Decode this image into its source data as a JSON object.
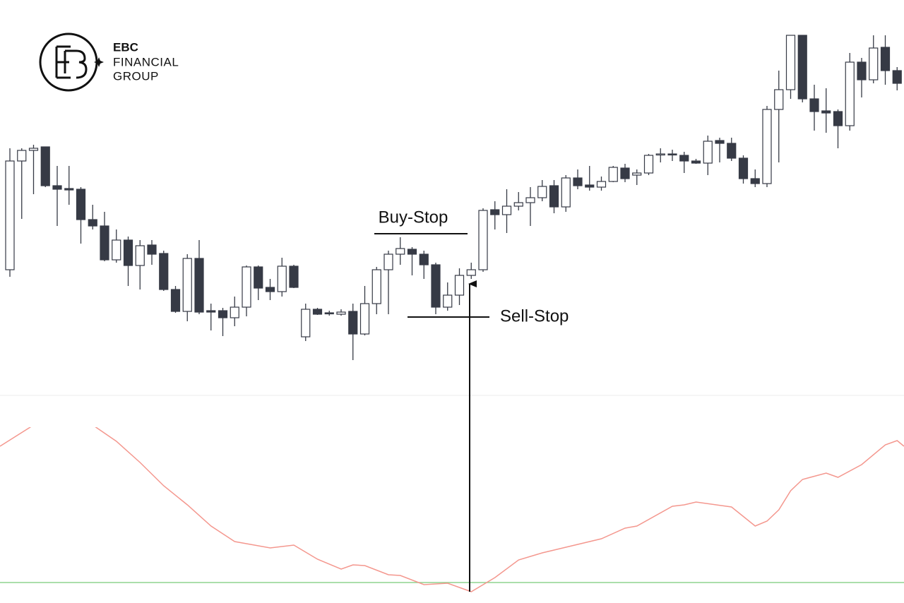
{
  "logo": {
    "line1": "EBC",
    "line2": "FINANCIAL",
    "line3": "GROUP"
  },
  "chart_data": [
    {
      "type": "candlestick",
      "categories": [
        null,
        null,
        null,
        null,
        null,
        null,
        null,
        null,
        null,
        null,
        null,
        null,
        null,
        null,
        null,
        null,
        null,
        null,
        null,
        null,
        null,
        null,
        null,
        null,
        null,
        null,
        null,
        null,
        null,
        null,
        null,
        null,
        null,
        null,
        null,
        null,
        null,
        null,
        null,
        null,
        null,
        null,
        null,
        null,
        null,
        null,
        null,
        null,
        null,
        null,
        null,
        null,
        null,
        null,
        null,
        null,
        null,
        null,
        null,
        null,
        null,
        null,
        null,
        null,
        null,
        null,
        null,
        null,
        null,
        null,
        null,
        null,
        null,
        null,
        null,
        null
      ],
      "open": [
        472,
        626,
        641,
        646,
        591,
        587,
        586,
        543,
        534,
        486,
        514,
        478,
        507,
        495,
        444,
        413,
        488,
        414,
        414,
        404,
        419,
        476,
        447,
        441,
        477,
        377,
        416,
        411,
        409,
        413,
        381,
        424,
        472,
        494,
        501,
        494,
        479,
        419,
        436,
        464,
        472,
        557,
        550,
        562,
        567,
        574,
        591,
        561,
        602,
        592,
        589,
        597,
        616,
        606,
        609,
        635,
        636,
        634,
        626,
        623,
        655,
        651,
        630,
        601,
        594,
        699,
        727,
        804,
        714,
        697,
        696,
        676,
        766,
        741,
        787,
        754
      ],
      "high": [
        644,
        644,
        649,
        646,
        619,
        619,
        589,
        564,
        554,
        529,
        519,
        514,
        514,
        499,
        449,
        494,
        514,
        424,
        418,
        434,
        478,
        478,
        459,
        489,
        479,
        424,
        418,
        414,
        416,
        424,
        449,
        476,
        499,
        518,
        504,
        499,
        482,
        454,
        474,
        482,
        559,
        569,
        586,
        582,
        589,
        599,
        599,
        606,
        614,
        619,
        604,
        619,
        622,
        614,
        636,
        644,
        642,
        639,
        629,
        662,
        659,
        659,
        634,
        614,
        704,
        754,
        804,
        804,
        734,
        729,
        699,
        779,
        772,
        804,
        804,
        759
      ],
      "low": [
        462,
        544,
        579,
        589,
        534,
        564,
        509,
        529,
        484,
        482,
        449,
        444,
        479,
        442,
        411,
        399,
        409,
        386,
        378,
        392,
        406,
        429,
        429,
        434,
        446,
        371,
        408,
        407,
        407,
        344,
        379,
        409,
        409,
        479,
        464,
        459,
        409,
        414,
        422,
        459,
        469,
        529,
        524,
        556,
        534,
        569,
        552,
        554,
        586,
        584,
        584,
        596,
        596,
        592,
        606,
        624,
        626,
        609,
        622,
        606,
        624,
        626,
        594,
        589,
        589,
        624,
        714,
        709,
        669,
        666,
        644,
        669,
        716,
        736,
        734,
        726
      ],
      "close": [
        626,
        641,
        644,
        591,
        586,
        585,
        543,
        534,
        486,
        514,
        478,
        506,
        494,
        444,
        413,
        488,
        412,
        412,
        404,
        419,
        476,
        446,
        441,
        477,
        447,
        416,
        409,
        410,
        412,
        381,
        424,
        472,
        494,
        502,
        494,
        479,
        419,
        436,
        464,
        472,
        556,
        550,
        562,
        567,
        574,
        590,
        561,
        602,
        591,
        589,
        597,
        617,
        601,
        609,
        634,
        636,
        635,
        626,
        623,
        654,
        651,
        630,
        601,
        594,
        699,
        727,
        804,
        714,
        696,
        694,
        676,
        766,
        741,
        786,
        754,
        736
      ],
      "up_color": "#ffffff",
      "down_color": "#363a45",
      "edge_color": "#363a45",
      "ylim": [
        294,
        804
      ],
      "annotations": [
        {
          "text": "Buy-Stop",
          "value": 523
        },
        {
          "text": "Sell-Stop",
          "value": 405
        }
      ]
    },
    {
      "type": "line",
      "x": [
        -0.84,
        2,
        7,
        9,
        11,
        13,
        15,
        17,
        19,
        22,
        24,
        26,
        28,
        29,
        30,
        32,
        33,
        35,
        37,
        39,
        41,
        43,
        45,
        47,
        50,
        52,
        53,
        56,
        57,
        58,
        61,
        63,
        64,
        65,
        66,
        67,
        69,
        70,
        72,
        74,
        75,
        75.58
      ],
      "values": [
        222,
        252,
        252,
        229,
        199,
        166,
        139,
        109,
        87,
        78,
        82,
        62,
        48,
        54,
        53,
        40,
        39,
        26,
        28,
        16,
        36,
        61,
        71,
        79,
        91,
        106,
        109,
        137,
        139,
        143,
        136,
        109,
        116,
        132,
        159,
        175,
        184,
        178,
        196,
        224,
        230,
        222
      ],
      "color": "#f4978e",
      "xlim": [
        -0.84,
        75.58
      ],
      "ylim": [
        14,
        274
      ],
      "reference_line": {
        "value": 29,
        "color": "#8fd48f"
      }
    }
  ]
}
